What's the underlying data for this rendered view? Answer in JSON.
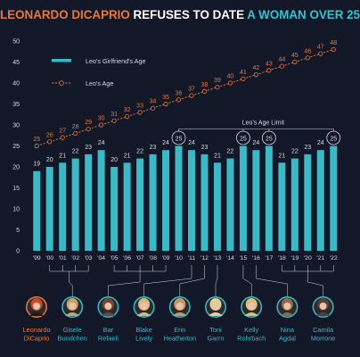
{
  "header": {
    "title_parts": [
      {
        "text": "LEONARDO DICAPRIO",
        "color": "#e8783a"
      },
      {
        "text": " REFUSES TO DATE ",
        "color": "#ffffff"
      },
      {
        "text": "A WOMAN OVER 25",
        "color": "#38c3cf"
      }
    ]
  },
  "colors": {
    "background": "#131829",
    "bar": "#3cb9c6",
    "leo_line": "#e8783a",
    "text": "#d4d9e4",
    "grid": "#2a3146"
  },
  "chart_data": {
    "type": "bar",
    "x": [
      "'99",
      "'00",
      "'01",
      "'02",
      "'03",
      "'04",
      "'05",
      "'06",
      "'07",
      "'08",
      "'09",
      "'10",
      "'11",
      "'12",
      "'13",
      "'14",
      "'15",
      "'16",
      "'17",
      "'18",
      "'19",
      "'20",
      "'21",
      "'22"
    ],
    "series": [
      {
        "name": "Leo's Girlfriend's Age",
        "type": "bar",
        "values": [
          19,
          20,
          21,
          22,
          23,
          24,
          20,
          21,
          22,
          23,
          24,
          25,
          24,
          23,
          21,
          22,
          25,
          24,
          25,
          21,
          22,
          23,
          24,
          25
        ]
      },
      {
        "name": "Leo's Age",
        "type": "line",
        "values": [
          25,
          26,
          27,
          28,
          29,
          30,
          31,
          32,
          33,
          34,
          35,
          36,
          37,
          38,
          39,
          40,
          41,
          42,
          43,
          44,
          45,
          46,
          47,
          48
        ]
      }
    ],
    "ylim": [
      0,
      50
    ],
    "yticks": [
      0,
      5,
      10,
      15,
      20,
      25,
      30,
      35,
      40,
      45,
      50
    ],
    "circled_indices": [
      11,
      16,
      18,
      23
    ],
    "annotation": "Leo's Age Limit",
    "legend_placement": "top-left",
    "grid": false
  },
  "girlfriends": [
    {
      "name_lines": [
        "Leonardo",
        "DiCaprio"
      ],
      "highlight": true,
      "color": "#c74b2b",
      "years": []
    },
    {
      "name_lines": [
        "Gisele",
        "Bundchen"
      ],
      "highlight": false,
      "color": "#c9a36a",
      "years": [
        1,
        2,
        3,
        4
      ]
    },
    {
      "name_lines": [
        "Bar",
        "Refaeli"
      ],
      "highlight": false,
      "color": "#6b4a3a",
      "years": [
        6,
        7,
        8,
        9,
        10
      ]
    },
    {
      "name_lines": [
        "Blake",
        "Lively"
      ],
      "highlight": false,
      "color": "#d6bb7a",
      "years": [
        12
      ]
    },
    {
      "name_lines": [
        "Erin",
        "Heatherton"
      ],
      "highlight": false,
      "color": "#c59a64",
      "years": [
        13
      ]
    },
    {
      "name_lines": [
        "Toni",
        "Garrn"
      ],
      "highlight": false,
      "color": "#e2cf9e",
      "years": [
        14
      ]
    },
    {
      "name_lines": [
        "Kelly",
        "Rohrbach"
      ],
      "highlight": false,
      "color": "#d9bd7c",
      "years": [
        16
      ]
    },
    {
      "name_lines": [
        "Nina",
        "Agdal"
      ],
      "highlight": false,
      "color": "#8b6a4e",
      "years": [
        17
      ]
    },
    {
      "name_lines": [
        "Camila",
        "Morrone"
      ],
      "highlight": false,
      "color": "#5a3d30",
      "years": [
        19,
        20,
        21,
        22,
        23
      ]
    }
  ]
}
